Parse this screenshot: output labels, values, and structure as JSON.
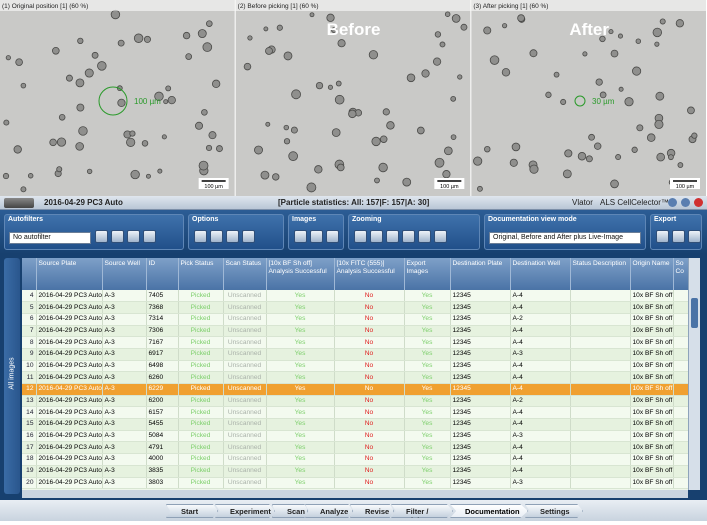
{
  "panels": [
    {
      "label": "(1) Original position [1] (60 %)",
      "annotation": "100 µm",
      "scale_bar": "100 µm"
    },
    {
      "label": "(2) Before picking [1] (60 %)",
      "overlay": "Before",
      "scale_bar": "100 µm"
    },
    {
      "label": "(3) After picking [1] (60 %)",
      "overlay": "After",
      "annotation": "30 µm",
      "scale_bar": "100 µm"
    }
  ],
  "title_bar": {
    "experiment": "2016-04-29 PC3 Auto",
    "statistics": "[Particle statistics: All: 157|F: 157|A: 30]",
    "user": "Vlator",
    "app": "ALS CellCelector™"
  },
  "toolbar": {
    "groups": [
      "Autofilters",
      "Options",
      "Images",
      "Zooming",
      "Documentation view mode",
      "Export"
    ],
    "autofilter": "No autofilter",
    "view_mode": "Original, Before and After plus Live-Image"
  },
  "side_tab": "All images",
  "table": {
    "columns": [
      "Source Plate",
      "Source Well",
      "ID",
      "Pick Status",
      "Scan Status",
      "[10x BF Sh off] Analysis Successful",
      "[10x FITC (555)] Analysis Successful",
      "Export Images",
      "Destination Plate",
      "Destination Well",
      "Status Description",
      "Origin Name",
      "So Co"
    ],
    "selected_row": 12,
    "rows": [
      {
        "n": 4,
        "cells": [
          "2016-04-29 PC3 Auto",
          "A-3",
          "7405",
          "Picked",
          "Unscanned",
          "Yes",
          "No",
          "Yes",
          "12345",
          "A-4",
          "10x BF Sh off"
        ]
      },
      {
        "n": 5,
        "cells": [
          "2016-04-29 PC3 Auto",
          "A-3",
          "7368",
          "Picked",
          "Unscanned",
          "Yes",
          "No",
          "Yes",
          "12345",
          "A-4",
          "10x BF Sh off"
        ]
      },
      {
        "n": 6,
        "cells": [
          "2016-04-29 PC3 Auto",
          "A-3",
          "7314",
          "Picked",
          "Unscanned",
          "Yes",
          "No",
          "Yes",
          "12345",
          "A-2",
          "10x BF Sh off"
        ]
      },
      {
        "n": 7,
        "cells": [
          "2016-04-29 PC3 Auto",
          "A-3",
          "7306",
          "Picked",
          "Unscanned",
          "Yes",
          "No",
          "Yes",
          "12345",
          "A-4",
          "10x BF Sh off"
        ]
      },
      {
        "n": 8,
        "cells": [
          "2016-04-29 PC3 Auto",
          "A-3",
          "7167",
          "Picked",
          "Unscanned",
          "Yes",
          "No",
          "Yes",
          "12345",
          "A-4",
          "10x BF Sh off"
        ]
      },
      {
        "n": 9,
        "cells": [
          "2016-04-29 PC3 Auto",
          "A-3",
          "6917",
          "Picked",
          "Unscanned",
          "Yes",
          "No",
          "Yes",
          "12345",
          "A-3",
          "10x BF Sh off"
        ]
      },
      {
        "n": 10,
        "cells": [
          "2016-04-29 PC3 Auto",
          "A-3",
          "6498",
          "Picked",
          "Unscanned",
          "Yes",
          "No",
          "Yes",
          "12345",
          "A-4",
          "10x BF Sh off"
        ]
      },
      {
        "n": 11,
        "cells": [
          "2016-04-29 PC3 Auto",
          "A-3",
          "6260",
          "Picked",
          "Unscanned",
          "Yes",
          "No",
          "Yes",
          "12345",
          "A-4",
          "10x BF Sh off"
        ]
      },
      {
        "n": 12,
        "cells": [
          "2016-04-29 PC3 Auto",
          "A-3",
          "6229",
          "Picked",
          "Unscanned",
          "Yes",
          "No",
          "Yes",
          "12345",
          "A-4",
          "10x BF Sh off"
        ]
      },
      {
        "n": 13,
        "cells": [
          "2016-04-29 PC3 Auto",
          "A-3",
          "6200",
          "Picked",
          "Unscanned",
          "Yes",
          "No",
          "Yes",
          "12345",
          "A-2",
          "10x BF Sh off"
        ]
      },
      {
        "n": 14,
        "cells": [
          "2016-04-29 PC3 Auto",
          "A-3",
          "6157",
          "Picked",
          "Unscanned",
          "Yes",
          "No",
          "Yes",
          "12345",
          "A-4",
          "10x BF Sh off"
        ]
      },
      {
        "n": 15,
        "cells": [
          "2016-04-29 PC3 Auto",
          "A-3",
          "5455",
          "Picked",
          "Unscanned",
          "Yes",
          "No",
          "Yes",
          "12345",
          "A-4",
          "10x BF Sh off"
        ]
      },
      {
        "n": 16,
        "cells": [
          "2016-04-29 PC3 Auto",
          "A-3",
          "5084",
          "Picked",
          "Unscanned",
          "Yes",
          "No",
          "Yes",
          "12345",
          "A-3",
          "10x BF Sh off"
        ]
      },
      {
        "n": 17,
        "cells": [
          "2016-04-29 PC3 Auto",
          "A-3",
          "4791",
          "Picked",
          "Unscanned",
          "Yes",
          "No",
          "Yes",
          "12345",
          "A-4",
          "10x BF Sh off"
        ]
      },
      {
        "n": 18,
        "cells": [
          "2016-04-29 PC3 Auto",
          "A-3",
          "4000",
          "Picked",
          "Unscanned",
          "Yes",
          "No",
          "Yes",
          "12345",
          "A-4",
          "10x BF Sh off"
        ]
      },
      {
        "n": 19,
        "cells": [
          "2016-04-29 PC3 Auto",
          "A-3",
          "3835",
          "Picked",
          "Unscanned",
          "Yes",
          "No",
          "Yes",
          "12345",
          "A-4",
          "10x BF Sh off"
        ]
      },
      {
        "n": 20,
        "cells": [
          "2016-04-29 PC3 Auto",
          "A-3",
          "3803",
          "Picked",
          "Unscanned",
          "Yes",
          "No",
          "Yes",
          "12345",
          "A-3",
          "10x BF Sh off"
        ]
      }
    ]
  },
  "nav": [
    "Start",
    "Experiment",
    "Scan",
    "Analyze",
    "Revise",
    "Filter / Pick",
    "Documentation",
    "Settings"
  ],
  "active_nav": "Documentation"
}
